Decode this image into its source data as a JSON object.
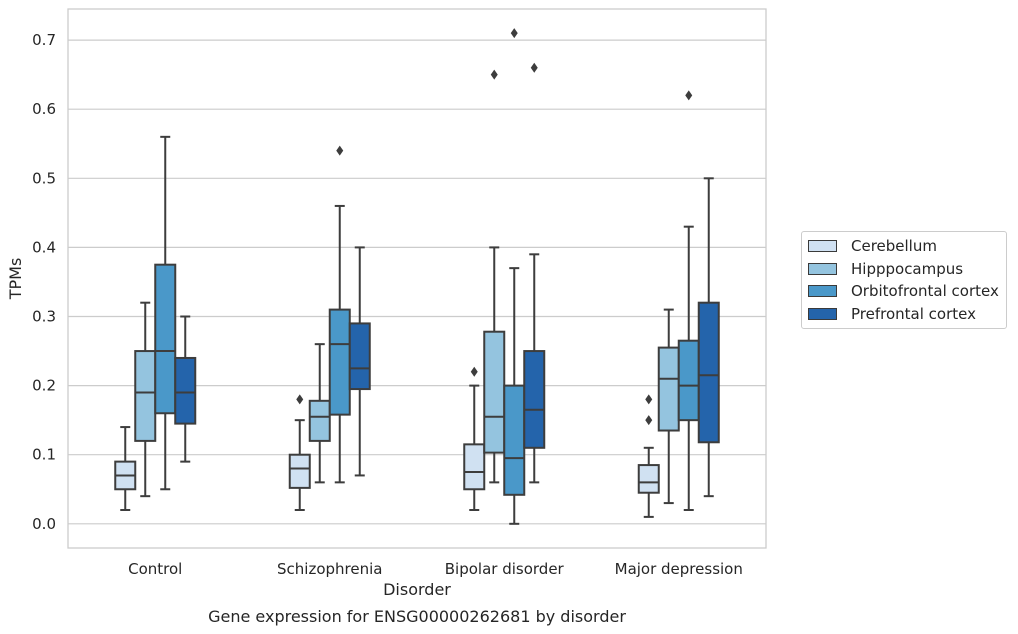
{
  "chart_data": {
    "type": "box",
    "title": "",
    "caption": "Gene expression for ENSG00000262681 by disorder",
    "xlabel": "Disorder",
    "ylabel": "TPMs",
    "ylim": [
      -0.035,
      0.745
    ],
    "yticks": [
      0.0,
      0.1,
      0.2,
      0.3,
      0.4,
      0.5,
      0.6,
      0.7
    ],
    "ytick_labels": [
      "0.0",
      "0.1",
      "0.2",
      "0.3",
      "0.4",
      "0.5",
      "0.6",
      "0.7"
    ],
    "grid": true,
    "legend_placement": "center-right outside",
    "categories": [
      "Control",
      "Schizophrenia",
      "Bipolar disorder",
      "Major depression"
    ],
    "series": [
      {
        "name": "Cerebellum",
        "color": "#d0e1f2",
        "boxes": [
          {
            "whisker_low": 0.02,
            "q1": 0.05,
            "median": 0.07,
            "q3": 0.09,
            "whisker_high": 0.14,
            "outliers": []
          },
          {
            "whisker_low": 0.02,
            "q1": 0.052,
            "median": 0.08,
            "q3": 0.1,
            "whisker_high": 0.15,
            "outliers": [
              0.18
            ]
          },
          {
            "whisker_low": 0.02,
            "q1": 0.05,
            "median": 0.075,
            "q3": 0.115,
            "whisker_high": 0.2,
            "outliers": [
              0.22
            ]
          },
          {
            "whisker_low": 0.01,
            "q1": 0.045,
            "median": 0.06,
            "q3": 0.085,
            "whisker_high": 0.11,
            "outliers": [
              0.15,
              0.18
            ]
          }
        ]
      },
      {
        "name": "Hipppocampus",
        "color": "#94c4df",
        "boxes": [
          {
            "whisker_low": 0.04,
            "q1": 0.12,
            "median": 0.19,
            "q3": 0.25,
            "whisker_high": 0.32,
            "outliers": []
          },
          {
            "whisker_low": 0.06,
            "q1": 0.12,
            "median": 0.155,
            "q3": 0.178,
            "whisker_high": 0.26,
            "outliers": []
          },
          {
            "whisker_low": 0.06,
            "q1": 0.103,
            "median": 0.155,
            "q3": 0.278,
            "whisker_high": 0.4,
            "outliers": [
              0.65
            ]
          },
          {
            "whisker_low": 0.03,
            "q1": 0.135,
            "median": 0.21,
            "q3": 0.255,
            "whisker_high": 0.31,
            "outliers": []
          }
        ]
      },
      {
        "name": "Orbitofrontal cortex",
        "color": "#4a98c9",
        "boxes": [
          {
            "whisker_low": 0.05,
            "q1": 0.16,
            "median": 0.25,
            "q3": 0.375,
            "whisker_high": 0.56,
            "outliers": []
          },
          {
            "whisker_low": 0.06,
            "q1": 0.158,
            "median": 0.26,
            "q3": 0.31,
            "whisker_high": 0.46,
            "outliers": [
              0.54
            ]
          },
          {
            "whisker_low": 0.0,
            "q1": 0.042,
            "median": 0.095,
            "q3": 0.2,
            "whisker_high": 0.37,
            "outliers": [
              0.71
            ]
          },
          {
            "whisker_low": 0.02,
            "q1": 0.15,
            "median": 0.2,
            "q3": 0.265,
            "whisker_high": 0.43,
            "outliers": [
              0.62
            ]
          }
        ]
      },
      {
        "name": "Prefrontal cortex",
        "color": "#2464ab",
        "boxes": [
          {
            "whisker_low": 0.09,
            "q1": 0.145,
            "median": 0.19,
            "q3": 0.24,
            "whisker_high": 0.3,
            "outliers": []
          },
          {
            "whisker_low": 0.07,
            "q1": 0.195,
            "median": 0.225,
            "q3": 0.29,
            "whisker_high": 0.4,
            "outliers": []
          },
          {
            "whisker_low": 0.06,
            "q1": 0.11,
            "median": 0.165,
            "q3": 0.25,
            "whisker_high": 0.39,
            "outliers": [
              0.66
            ]
          },
          {
            "whisker_low": 0.04,
            "q1": 0.118,
            "median": 0.215,
            "q3": 0.32,
            "whisker_high": 0.5,
            "outliers": []
          }
        ]
      }
    ]
  }
}
